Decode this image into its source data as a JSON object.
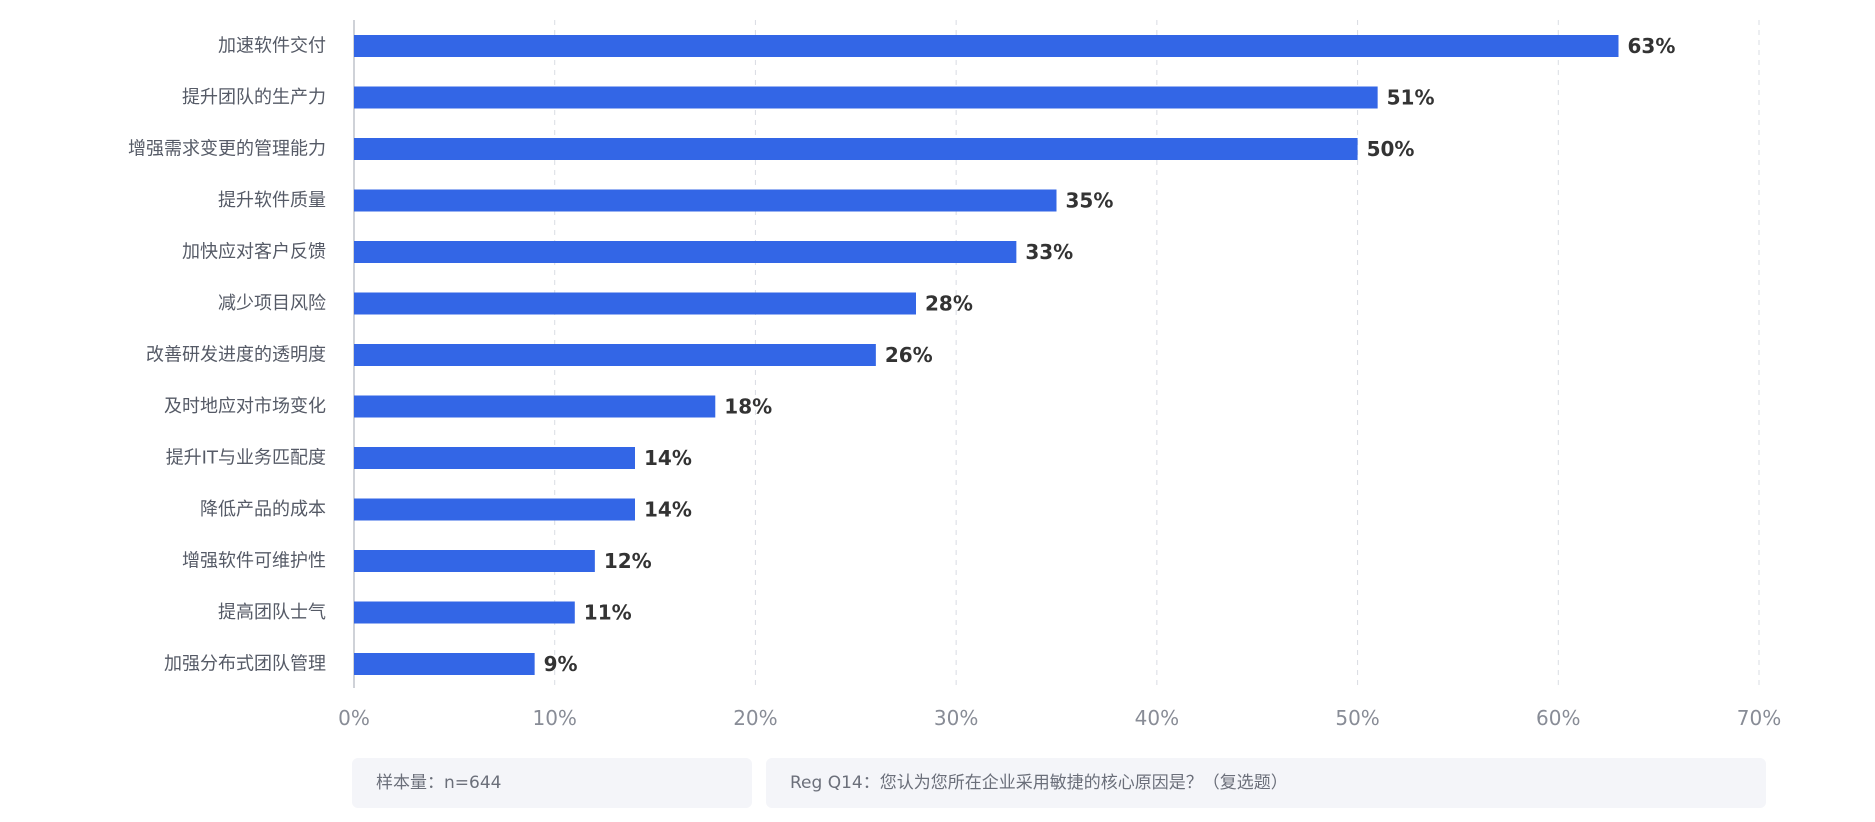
{
  "chart_data": {
    "type": "bar",
    "orientation": "horizontal",
    "categories": [
      "加速软件交付",
      "提升团队的生产力",
      "增强需求变更的管理能力",
      "提升软件质量",
      "加快应对客户反馈",
      "减少项目风险",
      "改善研发进度的透明度",
      "及时地应对市场变化",
      "提升IT与业务匹配度",
      "降低产品的成本",
      "增强软件可维护性",
      "提高团队士气",
      "加强分布式团队管理"
    ],
    "values": [
      63,
      51,
      50,
      35,
      33,
      28,
      26,
      18,
      14,
      14,
      12,
      11,
      9
    ],
    "value_labels": [
      "63%",
      "51%",
      "50%",
      "35%",
      "33%",
      "28%",
      "26%",
      "18%",
      "14%",
      "14%",
      "12%",
      "11%",
      "9%"
    ],
    "xlim": [
      0,
      70
    ],
    "xticks": [
      0,
      10,
      20,
      30,
      40,
      50,
      60,
      70
    ],
    "xtick_labels": [
      "0%",
      "10%",
      "20%",
      "30%",
      "40%",
      "50%",
      "60%",
      "70%"
    ],
    "grid": "vertical-dashed",
    "legend": "none",
    "bar_color": "#3366e6"
  },
  "footer": {
    "sample": "样本量：n=644",
    "question": "Reg Q14：您认为您所在企业采用敏捷的核心原因是？（复选题）"
  },
  "colors": {
    "bar": "#3366e6",
    "grid": "#d9dce3",
    "axis_line": "#bfc3cc",
    "category_text": "#555a66",
    "value_text": "#333333",
    "tick_text": "#888c96",
    "note_bg": "#f4f5f9",
    "note_text": "#6b6f7a"
  }
}
